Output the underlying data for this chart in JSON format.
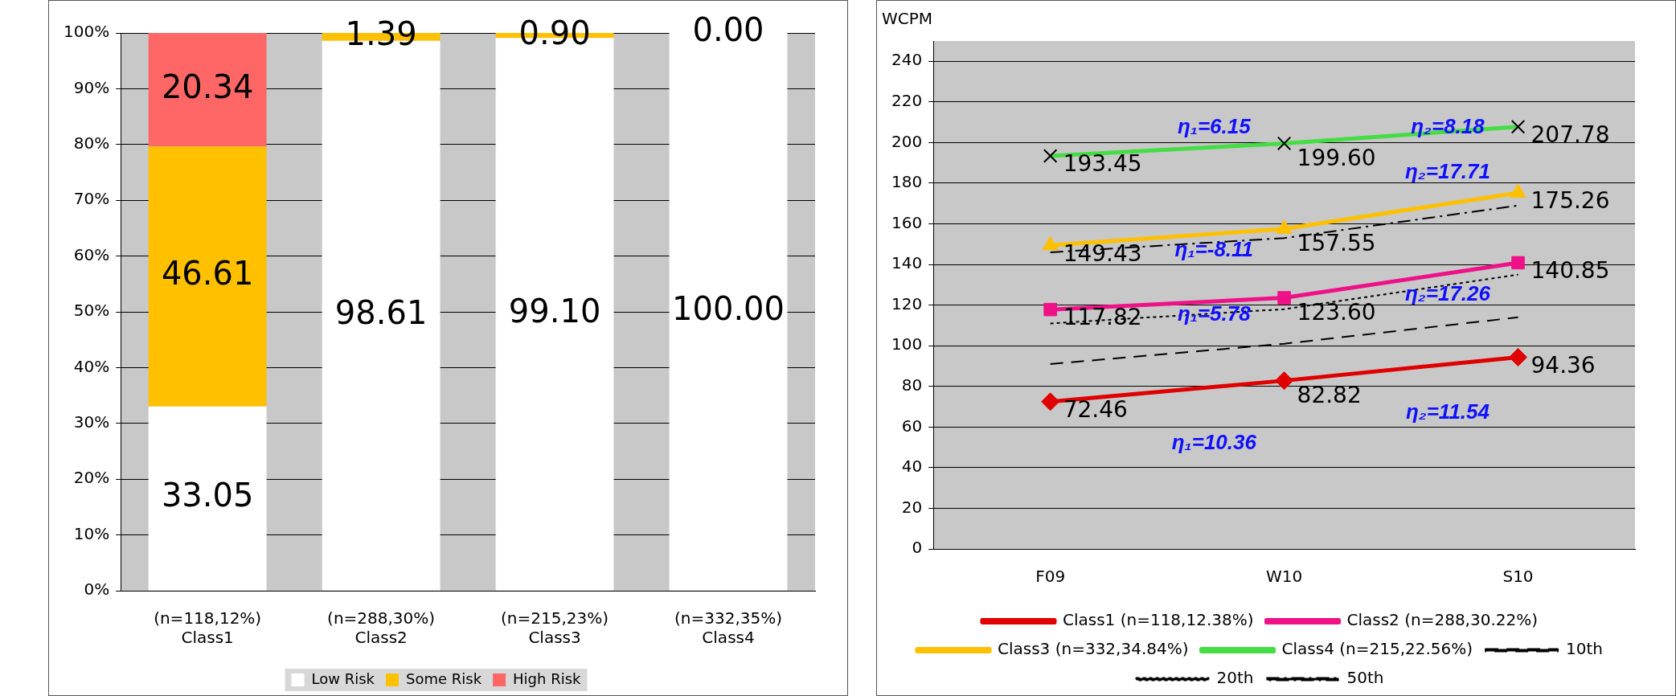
{
  "chart_data": [
    {
      "type": "bar",
      "stacked": true,
      "categories": [
        "(n=118,12%)\nClass1",
        "(n=288,30%)\nClass2",
        "(n=215,23%)\nClass3",
        "(n=332,35%)\nClass4"
      ],
      "ylim": [
        0,
        100
      ],
      "yticks": [
        {
          "value": 0,
          "label": "0%"
        },
        {
          "value": 10,
          "label": "10%"
        },
        {
          "value": 20,
          "label": "20%"
        },
        {
          "value": 30,
          "label": "30%"
        },
        {
          "value": 40,
          "label": "40%"
        },
        {
          "value": 50,
          "label": "50%"
        },
        {
          "value": 60,
          "label": "60%"
        },
        {
          "value": 70,
          "label": "70%"
        },
        {
          "value": 80,
          "label": "80%"
        },
        {
          "value": 90,
          "label": "90%"
        },
        {
          "value": 100,
          "label": "100%"
        }
      ],
      "grid": "y",
      "legend": "bottom",
      "series": [
        {
          "name": "Low Risk",
          "color": "#ffffff",
          "values": [
            33.05,
            98.61,
            99.1,
            100.0
          ],
          "value_labels": [
            "33.05",
            "98.61",
            "99.10",
            "100.00"
          ]
        },
        {
          "name": "Some Risk",
          "color": "#ffc000",
          "values": [
            46.61,
            1.39,
            0.9,
            0.0
          ],
          "value_labels": [
            "46.61",
            "1.39",
            "0.90",
            "0.00"
          ]
        },
        {
          "name": "High Risk",
          "color": "#ff6666",
          "values": [
            20.34,
            0,
            0,
            0
          ],
          "value_labels": [
            "20.34",
            null,
            null,
            null
          ]
        }
      ]
    },
    {
      "type": "line",
      "ylabel": "WCPM",
      "categories": [
        "F09",
        "W10",
        "S10"
      ],
      "ylim": [
        0,
        250
      ],
      "yticks": [
        0,
        20,
        40,
        60,
        80,
        100,
        120,
        140,
        160,
        180,
        200,
        220,
        240
      ],
      "grid": "y",
      "legend": "bottom",
      "series": [
        {
          "name": "Class1 (n=118,12.38%)",
          "color": "#e00000",
          "marker": "diamond",
          "line_style": "solid",
          "values": [
            72.46,
            82.82,
            94.36
          ],
          "value_labels": [
            "72.46",
            "82.82",
            "94.36"
          ]
        },
        {
          "name": "Class2 (n=288,30.22%)",
          "color": "#ee1188",
          "marker": "square",
          "line_style": "solid",
          "values": [
            117.82,
            123.6,
            140.85
          ],
          "value_labels": [
            "117.82",
            "123.60",
            "140.85"
          ]
        },
        {
          "name": "Class3 (n=332,34.84%)",
          "color": "#ffc000",
          "marker": "triangle",
          "line_style": "solid",
          "values": [
            149.43,
            157.55,
            175.26
          ],
          "value_labels": [
            "149.43",
            "157.55",
            "175.26"
          ]
        },
        {
          "name": "Class4 (n=215,22.56%)",
          "color": "#44dd44",
          "marker": "cross",
          "line_style": "solid",
          "values": [
            193.45,
            199.6,
            207.78
          ],
          "value_labels": [
            "193.45",
            "199.60",
            "207.78"
          ]
        },
        {
          "name": "10th",
          "color": "#000000",
          "marker": "none",
          "line_style": "dashed",
          "values": [
            91,
            101,
            114
          ]
        },
        {
          "name": "20th",
          "color": "#000000",
          "marker": "none",
          "line_style": "dotted",
          "values": [
            111,
            118,
            135
          ]
        },
        {
          "name": "50th",
          "color": "#000000",
          "marker": "none",
          "line_style": "dashdot",
          "values": [
            146,
            153,
            169
          ]
        }
      ],
      "annotations": [
        "η₁=6.15",
        "η₂=8.18",
        "η₂=17.71",
        "η₁=-8.11",
        "η₂=17.26",
        "η₁=5.78",
        "η₂=11.54",
        "η₁=10.36"
      ]
    }
  ]
}
